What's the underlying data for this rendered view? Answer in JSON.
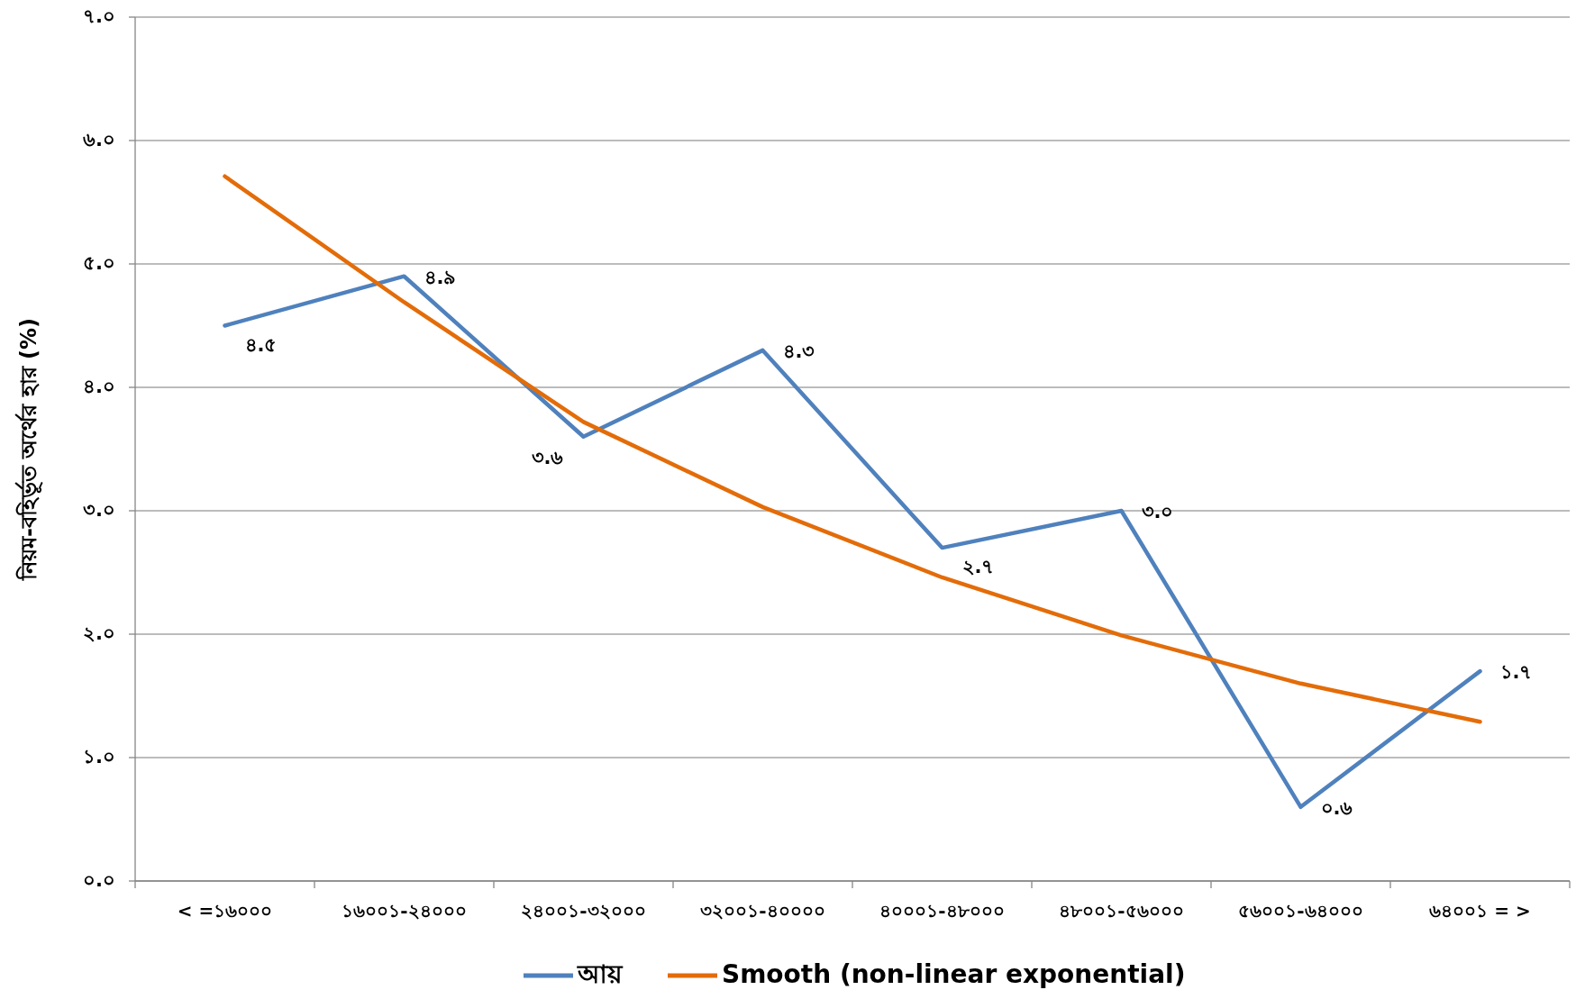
{
  "chart_data": {
    "type": "line",
    "ylabel": "নিয়ম-বহির্ভূত অর্থের হার (%)",
    "categories": [
      "< =১৬০০০",
      "১৬০০১-২৪০০০",
      "২৪০০১-৩২০০০",
      "৩২০০১-৪০০০০",
      "৪০০০১-৪৮০০০",
      "৪৮০০১-৫৬০০০",
      "৫৬০০১-৬৪০০০",
      "৬৪০০১ = >"
    ],
    "series": [
      {
        "name": "আয়",
        "color": "#4f81bd",
        "values": [
          4.5,
          4.9,
          3.6,
          4.3,
          2.7,
          3.0,
          0.6,
          1.7
        ],
        "value_labels": [
          "৪.৫",
          "৪.৯",
          "৩.৬",
          "৪.৩",
          "২.৭",
          "৩.০",
          "০.৬",
          "১.৭"
        ]
      },
      {
        "name": "Smooth (non-linear exponential)",
        "color": "#e36c09",
        "values": [
          5.71,
          4.69,
          3.72,
          3.03,
          2.46,
          1.99,
          1.6,
          1.29
        ]
      }
    ],
    "ylim": [
      0,
      7
    ],
    "yticks": [
      {
        "value": 0,
        "label": "০.০"
      },
      {
        "value": 1,
        "label": "১.০"
      },
      {
        "value": 2,
        "label": "২.০"
      },
      {
        "value": 3,
        "label": "৩.০"
      },
      {
        "value": 4,
        "label": "৪.০"
      },
      {
        "value": 5,
        "label": "৫.০"
      },
      {
        "value": 6,
        "label": "৬.০"
      },
      {
        "value": 7,
        "label": "৭.০"
      }
    ],
    "grid": "y",
    "legend": "bottom",
    "line_style": "solid",
    "marker": "none"
  }
}
